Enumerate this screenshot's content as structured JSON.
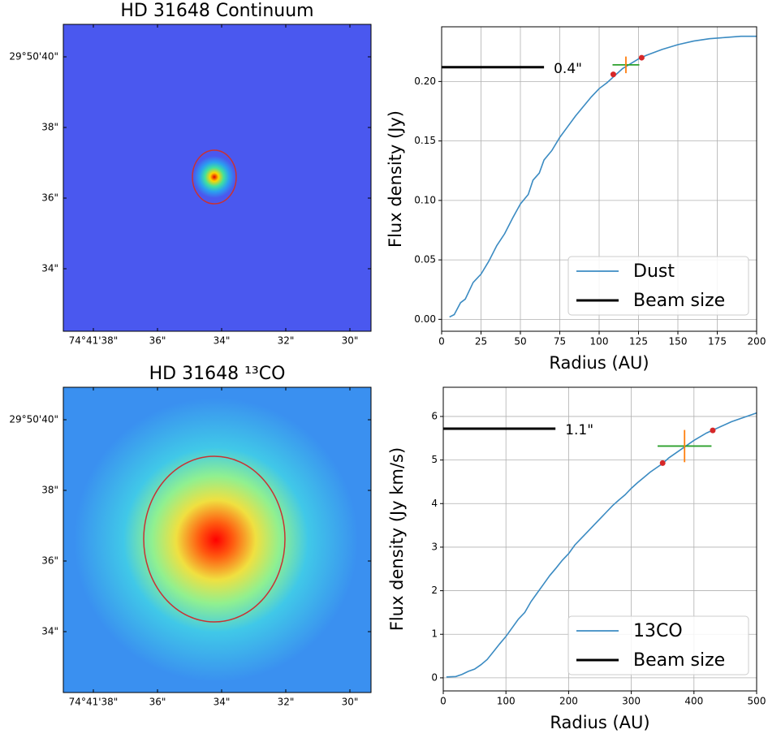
{
  "chart_data": [
    {
      "type": "image",
      "title": "HD 31648 Continuum",
      "xtick_labels": [
        "74°41'38\"",
        "36\"",
        "34\"",
        "32\"",
        "30\""
      ],
      "ytick_labels": [
        "29°50'40\"",
        "38\"",
        "36\"",
        "34\""
      ]
    },
    {
      "type": "line",
      "xlabel": "Radius (AU)",
      "ylabel": "Flux density (Jy)",
      "xlim": [
        0,
        200
      ],
      "ylim": [
        -0.01,
        0.246
      ],
      "xticks": [
        0,
        25,
        50,
        75,
        100,
        125,
        150,
        175,
        200
      ],
      "yticks": [
        {
          "value": 0,
          "label": "0.00"
        },
        {
          "value": 0.05,
          "label": "0.05"
        },
        {
          "value": 0.1,
          "label": "0.10"
        },
        {
          "value": 0.15,
          "label": "0.15"
        },
        {
          "value": 0.2,
          "label": "0.20"
        }
      ],
      "grid": true,
      "legend": "lower right",
      "series": [
        {
          "name": "Dust",
          "color": "#3b8bc2",
          "x": [
            5,
            8,
            12,
            15,
            20,
            25,
            30,
            35,
            40,
            45,
            50,
            55,
            58,
            62,
            65,
            70,
            75,
            80,
            85,
            90,
            95,
            100,
            105,
            110,
            115,
            120,
            125,
            130,
            140,
            150,
            160,
            170,
            180,
            190,
            200
          ],
          "values": [
            0.002,
            0.004,
            0.014,
            0.017,
            0.031,
            0.038,
            0.049,
            0.062,
            0.072,
            0.085,
            0.097,
            0.105,
            0.117,
            0.123,
            0.134,
            0.142,
            0.153,
            0.162,
            0.171,
            0.179,
            0.187,
            0.194,
            0.199,
            0.205,
            0.211,
            0.215,
            0.219,
            0.222,
            0.227,
            0.231,
            0.234,
            0.236,
            0.237,
            0.238,
            0.238
          ]
        },
        {
          "name": "Beam size",
          "color": "#000000",
          "x": [
            0,
            65
          ],
          "values": [
            0.212,
            0.212
          ]
        }
      ],
      "annotation": "0.4\"",
      "points": {
        "color": "#d62728",
        "x": [
          109,
          127
        ],
        "values": [
          0.206,
          0.22
        ]
      },
      "errorbar": {
        "x": 117,
        "y": 0.214,
        "xerr": 8.5,
        "yerr": 0.007,
        "xcolor": "#2ca02c",
        "ycolor": "#ff7f0e"
      }
    },
    {
      "type": "image",
      "title": "HD 31648 ¹³CO",
      "xtick_labels": [
        "74°41'38\"",
        "36\"",
        "34\"",
        "32\"",
        "30\""
      ],
      "ytick_labels": [
        "29°50'40\"",
        "38\"",
        "36\"",
        "34\""
      ]
    },
    {
      "type": "line",
      "xlabel": "Radius (AU)",
      "ylabel": "Flux density (Jy km/s)",
      "xlim": [
        0,
        500
      ],
      "ylim": [
        -0.3,
        6.67
      ],
      "xticks": [
        0,
        100,
        200,
        300,
        400,
        500
      ],
      "yticks": [
        0,
        1,
        2,
        3,
        4,
        5,
        6
      ],
      "grid": true,
      "legend": "lower right",
      "series": [
        {
          "name": "13CO",
          "color": "#3b8bc2",
          "x": [
            5,
            20,
            30,
            40,
            50,
            60,
            70,
            80,
            90,
            100,
            110,
            120,
            130,
            140,
            150,
            160,
            170,
            180,
            190,
            200,
            210,
            220,
            230,
            240,
            250,
            260,
            270,
            280,
            290,
            300,
            310,
            320,
            330,
            340,
            350,
            360,
            370,
            380,
            390,
            400,
            420,
            440,
            460,
            480,
            500
          ],
          "values": [
            0.02,
            0.03,
            0.08,
            0.15,
            0.2,
            0.3,
            0.42,
            0.6,
            0.78,
            0.95,
            1.15,
            1.35,
            1.5,
            1.75,
            1.95,
            2.15,
            2.35,
            2.52,
            2.7,
            2.85,
            3.05,
            3.2,
            3.35,
            3.5,
            3.65,
            3.8,
            3.95,
            4.08,
            4.2,
            4.35,
            4.48,
            4.6,
            4.72,
            4.82,
            4.92,
            5.05,
            5.15,
            5.25,
            5.35,
            5.45,
            5.62,
            5.75,
            5.88,
            5.98,
            6.08
          ]
        },
        {
          "name": "Beam size",
          "color": "#000000",
          "x": [
            0,
            179
          ],
          "values": [
            5.72,
            5.72
          ]
        }
      ],
      "annotation": "1.1\"",
      "points": {
        "color": "#d62728",
        "x": [
          350,
          430
        ],
        "values": [
          4.93,
          5.68
        ]
      },
      "errorbar": {
        "x": 385,
        "y": 5.32,
        "xerr": 43,
        "yerr": 0.37,
        "xcolor": "#2ca02c",
        "ycolor": "#ff7f0e"
      }
    }
  ]
}
